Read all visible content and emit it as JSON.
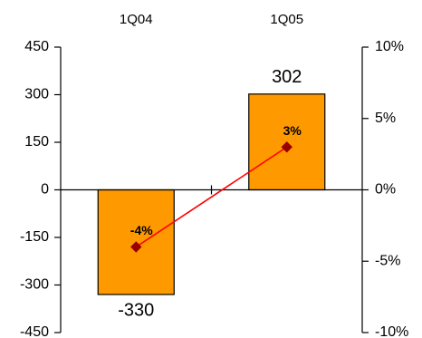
{
  "chart_data": {
    "type": "bar",
    "categories": [
      "1Q04",
      "1Q05"
    ],
    "series": [
      {
        "values": [
          -330,
          302
        ],
        "axis": "left",
        "color": "#FF9900",
        "data_labels": [
          "-330",
          "302"
        ]
      },
      {
        "values": [
          -4,
          3
        ],
        "axis": "right",
        "kind": "line",
        "color": "#FF0000",
        "marker_color": "#990000",
        "data_labels": [
          "-4%",
          "3%"
        ]
      }
    ],
    "y_left": {
      "ylim": [
        -450,
        450
      ],
      "ticks": [
        450,
        300,
        150,
        0,
        -150,
        -300,
        -450
      ],
      "tick_labels": [
        "450",
        "300",
        "150",
        "0",
        "-150",
        "-300",
        "-450"
      ]
    },
    "y_right": {
      "ylim": [
        -10,
        10
      ],
      "ticks": [
        10,
        5,
        0,
        -5,
        -10
      ],
      "tick_labels": [
        "10%",
        "5%",
        "0%",
        "-5%",
        "-10%"
      ]
    },
    "category_axis_position": "top",
    "grid": false,
    "legend": "none",
    "title": "",
    "xlabel": "",
    "ylabel": ""
  }
}
